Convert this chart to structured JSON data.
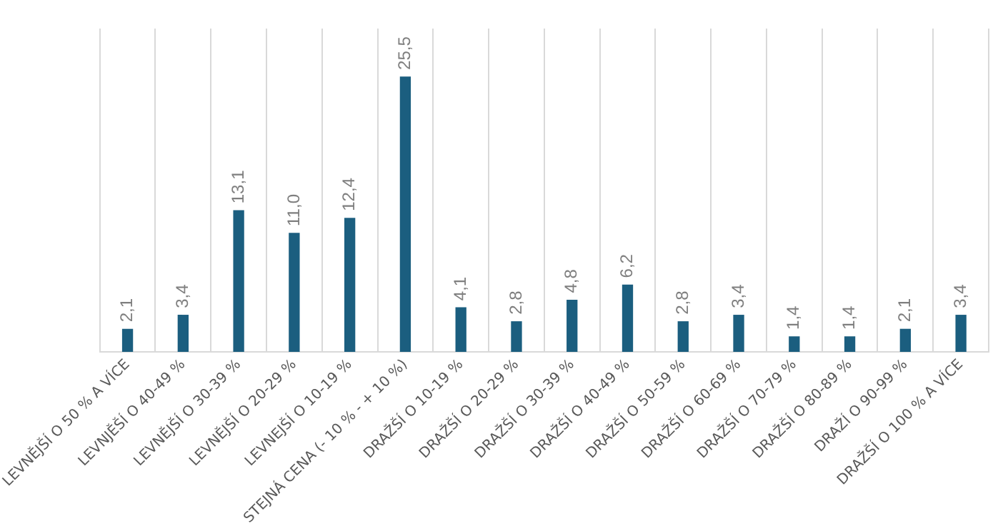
{
  "chart_data": {
    "type": "bar",
    "categories": [
      "LEVNĚJŠÍ O 50 % A VÍCE",
      "LEVNJĚŠÍ O 40-49 %",
      "LEVNĚJŠÍ O 30-39 %",
      "LEVNĚJŠÍ O 20-29 %",
      "LEVNEJŠÍ O 10-19 %",
      "STEJNÁ CENA (- 10 % - + 10 %)",
      "DRAŽŠÍ O 10-19 %",
      "DRAŽŠÍ O 20-29 %",
      "DRAŽŠÍ O 30-39 %",
      "DRAŽŠÍ O 40-49 %",
      "DRAŽŠÍ O 50-59 %",
      "DRAŽŠÍ O 60-69 %",
      "DRAŽŠÍ O 70-79 %",
      "DRAŽŠÍ O 80-89 %",
      "DRAŽÍ O 90-99 %",
      "DRAŽŠÍ O 100 % A VÍCE"
    ],
    "values": [
      2.1,
      3.4,
      13.1,
      11.0,
      12.4,
      25.5,
      4.1,
      2.8,
      4.8,
      6.2,
      2.8,
      3.4,
      1.4,
      1.4,
      2.1,
      3.4
    ],
    "value_labels": [
      "2,1",
      "3,4",
      "13,1",
      "11,0",
      "12,4",
      "25,5",
      "4,1",
      "2,8",
      "4,8",
      "6,2",
      "2,8",
      "3,4",
      "1,4",
      "1,4",
      "2,1",
      "3,4"
    ],
    "color": "#1b5e7f",
    "ylim": [
      0,
      30
    ],
    "grid": "x",
    "legend": false
  }
}
